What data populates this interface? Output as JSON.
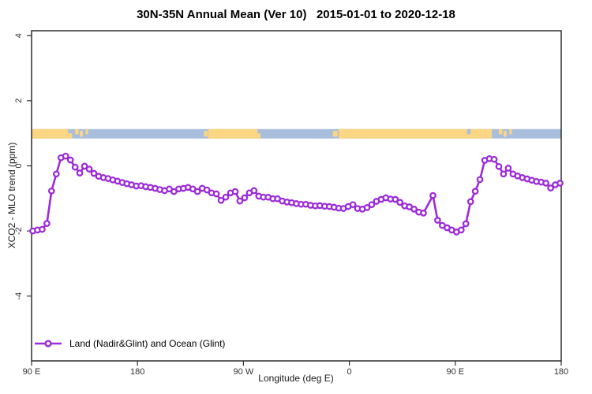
{
  "window": {
    "title": "30N-35N Annual Mean (Ver 10)   2015-01-01 to 2020-12-18"
  },
  "chart_data": {
    "type": "line",
    "title": "30N-35N Annual Mean (Ver 10)   2015-01-01 to 2020-12-18",
    "xlabel": "Longitude (deg E)",
    "ylabel": "XCO2 - MLO trend (ppm)",
    "xlim": [
      90,
      540
    ],
    "ylim": [
      -5.99,
      4.15
    ],
    "grid": false,
    "x_ticks": [
      {
        "deg": 90,
        "label": "90 E"
      },
      {
        "deg": 180,
        "label": "180"
      },
      {
        "deg": 270,
        "label": "90 W"
      },
      {
        "deg": 360,
        "label": "0"
      },
      {
        "deg": 450,
        "label": "90 E"
      },
      {
        "deg": 540,
        "label": "180"
      }
    ],
    "y_ticks": [
      {
        "val": 4,
        "label": "4"
      },
      {
        "val": 2,
        "label": "2"
      },
      {
        "val": 0,
        "label": "0"
      },
      {
        "val": -2,
        "label": "-2"
      },
      {
        "val": -4,
        "label": "-4"
      }
    ],
    "legend": {
      "position": "bottom-left-inside",
      "entries": [
        {
          "label": "Land (Nadir&Glint) and Ocean (Glint)",
          "color": "#9C2AD9",
          "marker": "open-circle"
        }
      ]
    },
    "series": [
      {
        "name": "Land (Nadir&Glint) and Ocean (Glint)",
        "color": "#9C2AD9",
        "marker_fill": "#ffffff",
        "points": [
          [
            91,
            -2.0
          ],
          [
            95,
            -1.97
          ],
          [
            99,
            -1.95
          ],
          [
            103,
            -1.77
          ],
          [
            107,
            -0.77
          ],
          [
            111,
            -0.25
          ],
          [
            115,
            0.25
          ],
          [
            119,
            0.3
          ],
          [
            123,
            0.18
          ],
          [
            127,
            -0.04
          ],
          [
            131,
            -0.22
          ],
          [
            135,
            -0.01
          ],
          [
            139,
            -0.1
          ],
          [
            143,
            -0.23
          ],
          [
            147,
            -0.32
          ],
          [
            151,
            -0.36
          ],
          [
            155,
            -0.39
          ],
          [
            159,
            -0.43
          ],
          [
            163,
            -0.47
          ],
          [
            167,
            -0.51
          ],
          [
            171,
            -0.55
          ],
          [
            175,
            -0.58
          ],
          [
            179,
            -0.62
          ],
          [
            183,
            -0.61
          ],
          [
            187,
            -0.64
          ],
          [
            191,
            -0.66
          ],
          [
            195,
            -0.69
          ],
          [
            199,
            -0.73
          ],
          [
            203,
            -0.76
          ],
          [
            207,
            -0.71
          ],
          [
            211,
            -0.79
          ],
          [
            215,
            -0.71
          ],
          [
            219,
            -0.69
          ],
          [
            223,
            -0.66
          ],
          [
            227,
            -0.71
          ],
          [
            231,
            -0.79
          ],
          [
            235,
            -0.69
          ],
          [
            239,
            -0.74
          ],
          [
            243,
            -0.83
          ],
          [
            247,
            -0.86
          ],
          [
            251,
            -1.06
          ],
          [
            255,
            -0.96
          ],
          [
            259,
            -0.83
          ],
          [
            263,
            -0.79
          ],
          [
            267,
            -1.08
          ],
          [
            271,
            -0.98
          ],
          [
            275,
            -0.83
          ],
          [
            279,
            -0.76
          ],
          [
            283,
            -0.93
          ],
          [
            287,
            -0.96
          ],
          [
            291,
            -0.96
          ],
          [
            295,
            -1.01
          ],
          [
            299,
            -1.01
          ],
          [
            303,
            -1.08
          ],
          [
            307,
            -1.11
          ],
          [
            311,
            -1.13
          ],
          [
            315,
            -1.16
          ],
          [
            319,
            -1.18
          ],
          [
            323,
            -1.18
          ],
          [
            327,
            -1.21
          ],
          [
            331,
            -1.23
          ],
          [
            335,
            -1.22
          ],
          [
            339,
            -1.24
          ],
          [
            343,
            -1.25
          ],
          [
            347,
            -1.27
          ],
          [
            351,
            -1.3
          ],
          [
            355,
            -1.31
          ],
          [
            359,
            -1.25
          ],
          [
            363,
            -1.19
          ],
          [
            367,
            -1.31
          ],
          [
            371,
            -1.33
          ],
          [
            375,
            -1.28
          ],
          [
            379,
            -1.19
          ],
          [
            383,
            -1.09
          ],
          [
            387,
            -1.03
          ],
          [
            391,
            -0.98
          ],
          [
            395,
            -1.02
          ],
          [
            399,
            -1.03
          ],
          [
            403,
            -1.12
          ],
          [
            407,
            -1.23
          ],
          [
            411,
            -1.26
          ],
          [
            415,
            -1.33
          ],
          [
            419,
            -1.42
          ],
          [
            423,
            -1.45
          ],
          [
            431,
            -0.91
          ],
          [
            435,
            -1.67
          ],
          [
            439,
            -1.83
          ],
          [
            443,
            -1.9
          ],
          [
            447,
            -1.97
          ],
          [
            451,
            -2.03
          ],
          [
            455,
            -1.97
          ],
          [
            459,
            -1.78
          ],
          [
            463,
            -1.1
          ],
          [
            467,
            -0.78
          ],
          [
            471,
            -0.42
          ],
          [
            475,
            0.17
          ],
          [
            479,
            0.22
          ],
          [
            483,
            0.2
          ],
          [
            487,
            -0.02
          ],
          [
            491,
            -0.25
          ],
          [
            495,
            -0.07
          ],
          [
            499,
            -0.25
          ],
          [
            503,
            -0.31
          ],
          [
            507,
            -0.36
          ],
          [
            511,
            -0.4
          ],
          [
            515,
            -0.44
          ],
          [
            519,
            -0.48
          ],
          [
            523,
            -0.5
          ],
          [
            527,
            -0.53
          ],
          [
            531,
            -0.68
          ],
          [
            535,
            -0.58
          ],
          [
            539,
            -0.53
          ]
        ]
      }
    ],
    "map_strip": {
      "description": "land/ocean world-map band along the 30N-35N latitude zone",
      "y_top_val": 1.13,
      "y_bot_val": 0.84,
      "ocean_color": "#A9BEDC",
      "land_color": "#FBD683",
      "land_segments": [
        [
          90,
          121
        ],
        [
          240,
          282
        ],
        [
          351,
          481
        ]
      ],
      "land_patches": [
        [
          121,
          124.5,
          "lower"
        ],
        [
          127,
          130,
          "upper"
        ],
        [
          131,
          133.5,
          "mid"
        ],
        [
          136,
          138,
          "upper"
        ],
        [
          236.5,
          239.5,
          "mid"
        ],
        [
          282,
          284.5,
          "lower"
        ],
        [
          346,
          350,
          "mid"
        ],
        [
          487,
          490,
          "upper"
        ],
        [
          491,
          493.5,
          "mid"
        ],
        [
          496,
          498,
          "upper"
        ]
      ],
      "ocean_notches": [
        [
          460,
          463,
          "upper"
        ]
      ]
    },
    "frame_color": "#2e2e2e",
    "tick_label_color": "#333333"
  }
}
